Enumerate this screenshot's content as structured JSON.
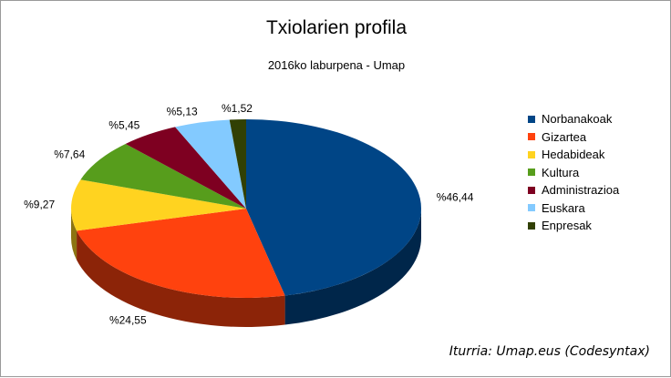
{
  "chart_data": {
    "type": "pie",
    "title": "Txiolarien profila",
    "subtitle": "2016ko laburpena - Umap",
    "source": "Iturria: Umap.eus (Codesyntax)",
    "legend_position": "right",
    "slices": [
      {
        "name": "Norbanakoak",
        "value": 46.44,
        "label": "%46,44",
        "color": "#004586"
      },
      {
        "name": "Gizartea",
        "value": 24.55,
        "label": "%24,55",
        "color": "#ff420e"
      },
      {
        "name": "Hedabideak",
        "value": 9.27,
        "label": "%9,27",
        "color": "#ffd320"
      },
      {
        "name": "Kultura",
        "value": 7.64,
        "label": "%7,64",
        "color": "#579d1c"
      },
      {
        "name": "Administrazioa",
        "value": 5.45,
        "label": "%5,45",
        "color": "#7e0021"
      },
      {
        "name": "Euskara",
        "value": 5.13,
        "label": "%5,13",
        "color": "#83caff"
      },
      {
        "name": "Enpresak",
        "value": 1.52,
        "label": "%1,52",
        "color": "#314004"
      }
    ]
  }
}
